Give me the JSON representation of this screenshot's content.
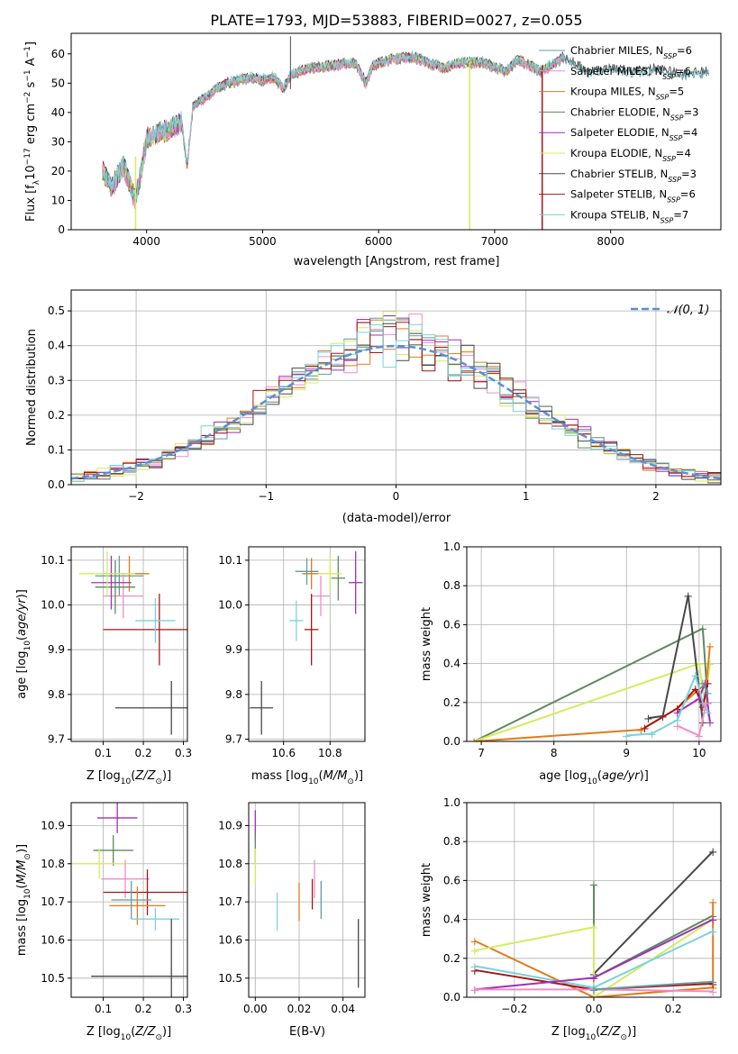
{
  "figure_title": "PLATE=1793, MJD=53883, FIBERID=0027, z=0.055",
  "models": [
    {
      "name": "Chabrier MILES",
      "nssp": "6",
      "color": "#5f9ea0"
    },
    {
      "name": "Salpeter MILES",
      "nssp": "6",
      "color": "#f08cc8"
    },
    {
      "name": "Kroupa MILES",
      "nssp": "5",
      "color": "#e07b1a"
    },
    {
      "name": "Chabrier ELODIE",
      "nssp": "3",
      "color": "#5e8a5e"
    },
    {
      "name": "Salpeter ELODIE",
      "nssp": "4",
      "color": "#a030b8"
    },
    {
      "name": "Kroupa ELODIE",
      "nssp": "4",
      "color": "#d4ec5c"
    },
    {
      "name": "Chabrier STELIB",
      "nssp": "3",
      "color": "#484848"
    },
    {
      "name": "Salpeter STELIB",
      "nssp": "6",
      "color": "#a81414"
    },
    {
      "name": "Kroupa STELIB",
      "nssp": "7",
      "color": "#78d2e0"
    }
  ],
  "chart_data": [
    {
      "type": "line",
      "xlabel": "wavelength [Angstrom, rest frame]",
      "ylabel": "Flux [f_λ 10^-17 erg cm^-2 s^-1 A^-1]",
      "xlim": [
        3350,
        8950
      ],
      "ylim": [
        0,
        67
      ],
      "xticks": [
        4000,
        5000,
        6000,
        7000,
        8000
      ],
      "yticks": [
        0,
        10,
        20,
        30,
        40,
        50,
        60
      ],
      "spectrum_anchors": [
        [
          3620,
          20
        ],
        [
          3700,
          14
        ],
        [
          3800,
          22
        ],
        [
          3850,
          16
        ],
        [
          3900,
          10
        ],
        [
          3950,
          19
        ],
        [
          4000,
          31
        ],
        [
          4100,
          33
        ],
        [
          4200,
          34
        ],
        [
          4300,
          37
        ],
        [
          4350,
          22
        ],
        [
          4400,
          42
        ],
        [
          4500,
          45
        ],
        [
          4600,
          48
        ],
        [
          4700,
          50
        ],
        [
          4800,
          51
        ],
        [
          4900,
          52
        ],
        [
          5000,
          51
        ],
        [
          5100,
          52
        ],
        [
          5175,
          48
        ],
        [
          5250,
          53
        ],
        [
          5400,
          55
        ],
        [
          5600,
          56
        ],
        [
          5800,
          57
        ],
        [
          5890,
          50
        ],
        [
          5950,
          56
        ],
        [
          6100,
          58
        ],
        [
          6300,
          59
        ],
        [
          6563,
          55
        ],
        [
          6700,
          57
        ],
        [
          6900,
          57
        ],
        [
          7100,
          54
        ],
        [
          7200,
          58
        ],
        [
          7400,
          54
        ],
        [
          7600,
          59
        ],
        [
          7800,
          54
        ],
        [
          8000,
          55
        ],
        [
          8200,
          54
        ],
        [
          8400,
          55
        ],
        [
          8600,
          53
        ],
        [
          8850,
          54
        ]
      ],
      "legend_position": "upper right",
      "grid": false
    },
    {
      "type": "bar",
      "subtype": "step-histogram",
      "xlabel": "(data-model)/error",
      "ylabel": "Normed distribution",
      "xlim": [
        -2.5,
        2.5
      ],
      "ylim": [
        0,
        0.56
      ],
      "xticks": [
        -2,
        -1,
        0,
        1,
        2
      ],
      "yticks": [
        0.0,
        0.1,
        0.2,
        0.3,
        0.4,
        0.5
      ],
      "bin_width": 0.1,
      "reference_curve": {
        "label": "N(0,1)",
        "mean": 0,
        "sigma": 1,
        "color": "#5b8fd4"
      },
      "grid": true,
      "legend_position": "upper right"
    },
    {
      "type": "scatter",
      "xlabel": "Z [log10(Z/Z⊙)]",
      "ylabel": "age [log10(age/yr)]",
      "xlim": [
        0.02,
        0.31
      ],
      "ylim": [
        9.695,
        10.13
      ],
      "xticks": [
        0.1,
        0.2,
        0.3
      ],
      "yticks": [
        9.7,
        9.8,
        9.9,
        10.0,
        10.1
      ],
      "grid": true,
      "points": [
        {
          "x": 0.14,
          "y": 10.065,
          "xerr": 0.06,
          "yerr": 0.045,
          "color": "#5f9ea0"
        },
        {
          "x": 0.15,
          "y": 10.02,
          "xerr": 0.05,
          "yerr": 0.05,
          "color": "#f08cc8"
        },
        {
          "x": 0.165,
          "y": 10.07,
          "xerr": 0.05,
          "yerr": 0.04,
          "color": "#e07b1a"
        },
        {
          "x": 0.13,
          "y": 10.04,
          "xerr": 0.05,
          "yerr": 0.06,
          "color": "#5e8a5e"
        },
        {
          "x": 0.12,
          "y": 10.05,
          "xerr": 0.05,
          "yerr": 0.06,
          "color": "#a030b8"
        },
        {
          "x": 0.11,
          "y": 10.07,
          "xerr": 0.07,
          "yerr": 0.05,
          "color": "#d4ec5c"
        },
        {
          "x": 0.27,
          "y": 9.77,
          "xerr": 0.14,
          "yerr": 0.06,
          "color": "#484848"
        },
        {
          "x": 0.24,
          "y": 9.945,
          "xerr": 0.14,
          "yerr": 0.08,
          "color": "#a81414"
        },
        {
          "x": 0.23,
          "y": 9.965,
          "xerr": 0.05,
          "yerr": 0.05,
          "color": "#78d2e0"
        }
      ]
    },
    {
      "type": "scatter",
      "xlabel": "mass [log10(M/M⊙)]",
      "ylabel": "",
      "xlim": [
        10.45,
        10.95
      ],
      "ylim": [
        9.695,
        10.13
      ],
      "xticks": [
        10.6,
        10.8
      ],
      "yticks": [
        9.7,
        9.8,
        9.9,
        10.0,
        10.1
      ],
      "grid": true,
      "points": [
        {
          "x": 10.655,
          "y": 9.965,
          "xerr": 0.03,
          "yerr": 0.045,
          "color": "#78d2e0"
        },
        {
          "x": 10.76,
          "y": 10.02,
          "xerr": 0.04,
          "yerr": 0.045,
          "color": "#f08cc8"
        },
        {
          "x": 10.72,
          "y": 10.07,
          "xerr": 0.04,
          "yerr": 0.035,
          "color": "#e07b1a"
        },
        {
          "x": 10.835,
          "y": 10.06,
          "xerr": 0.03,
          "yerr": 0.05,
          "color": "#5e8a5e"
        },
        {
          "x": 10.91,
          "y": 10.05,
          "xerr": 0.03,
          "yerr": 0.07,
          "color": "#a030b8"
        },
        {
          "x": 10.8,
          "y": 10.07,
          "xerr": 0.05,
          "yerr": 0.04,
          "color": "#d4ec5c"
        },
        {
          "x": 10.505,
          "y": 9.77,
          "xerr": 0.05,
          "yerr": 0.06,
          "color": "#484848"
        },
        {
          "x": 10.72,
          "y": 9.945,
          "xerr": 0.03,
          "yerr": 0.08,
          "color": "#a81414"
        },
        {
          "x": 10.7,
          "y": 10.075,
          "xerr": 0.05,
          "yerr": 0.03,
          "color": "#5f9ea0"
        }
      ]
    },
    {
      "type": "line",
      "xlabel": "age [log10(age/yr)]",
      "ylabel": "mass weight",
      "xlim": [
        6.8,
        10.3
      ],
      "ylim": [
        0,
        1.0
      ],
      "xticks": [
        7,
        8,
        9,
        10
      ],
      "yticks": [
        0.0,
        0.2,
        0.4,
        0.6,
        0.8,
        1.0
      ],
      "grid": true,
      "series": [
        {
          "color": "#5e8a5e",
          "points": [
            [
              6.9,
              0.0
            ],
            [
              10.05,
              0.58
            ],
            [
              10.12,
              0.2
            ]
          ]
        },
        {
          "color": "#d4ec5c",
          "points": [
            [
              6.9,
              0.0
            ],
            [
              10.0,
              0.4
            ],
            [
              10.08,
              0.2
            ],
            [
              10.15,
              0.4
            ]
          ]
        },
        {
          "color": "#484848",
          "points": [
            [
              9.3,
              0.12
            ],
            [
              9.5,
              0.13
            ],
            [
              9.85,
              0.75
            ],
            [
              10.05,
              0.1
            ]
          ]
        },
        {
          "color": "#e07b1a",
          "points": [
            [
              6.9,
              0.0
            ],
            [
              9.2,
              0.06
            ],
            [
              9.7,
              0.17
            ],
            [
              10.1,
              0.3
            ],
            [
              10.15,
              0.49
            ]
          ]
        },
        {
          "color": "#a81414",
          "points": [
            [
              9.25,
              0.07
            ],
            [
              9.7,
              0.17
            ],
            [
              9.95,
              0.27
            ],
            [
              10.05,
              0.18
            ],
            [
              10.12,
              0.3
            ]
          ]
        },
        {
          "color": "#a030b8",
          "points": [
            [
              9.7,
              0.15
            ],
            [
              10.0,
              0.22
            ],
            [
              10.08,
              0.3
            ],
            [
              10.15,
              0.1
            ]
          ]
        },
        {
          "color": "#78d2e0",
          "points": [
            [
              9.0,
              0.03
            ],
            [
              9.35,
              0.04
            ],
            [
              9.7,
              0.11
            ],
            [
              9.95,
              0.34
            ],
            [
              10.05,
              0.2
            ],
            [
              10.12,
              0.15
            ]
          ]
        },
        {
          "color": "#f08cc8",
          "points": [
            [
              9.7,
              0.08
            ],
            [
              10.0,
              0.03
            ],
            [
              10.1,
              0.2
            ]
          ]
        },
        {
          "color": "#5f9ea0",
          "points": [
            [
              10.05,
              0.3
            ],
            [
              10.12,
              0.25
            ]
          ]
        }
      ]
    },
    {
      "type": "scatter",
      "xlabel": "Z [log10(Z/Z⊙)]",
      "ylabel": "mass [log10(M/M⊙)]",
      "xlim": [
        0.02,
        0.31
      ],
      "ylim": [
        10.45,
        10.96
      ],
      "xticks": [
        0.1,
        0.2,
        0.3
      ],
      "yticks": [
        10.5,
        10.6,
        10.7,
        10.8,
        10.9
      ],
      "grid": true,
      "points": [
        {
          "x": 0.135,
          "y": 10.92,
          "xerr": 0.05,
          "yerr": 0.04,
          "color": "#a030b8"
        },
        {
          "x": 0.125,
          "y": 10.835,
          "xerr": 0.05,
          "yerr": 0.04,
          "color": "#5e8a5e"
        },
        {
          "x": 0.09,
          "y": 10.8,
          "xerr": 0.07,
          "yerr": 0.04,
          "color": "#d4ec5c"
        },
        {
          "x": 0.155,
          "y": 10.76,
          "xerr": 0.06,
          "yerr": 0.05,
          "color": "#f08cc8"
        },
        {
          "x": 0.21,
          "y": 10.725,
          "xerr": 0.11,
          "yerr": 0.06,
          "color": "#a81414"
        },
        {
          "x": 0.17,
          "y": 10.705,
          "xerr": 0.05,
          "yerr": 0.05,
          "color": "#5f9ea0"
        },
        {
          "x": 0.185,
          "y": 10.69,
          "xerr": 0.07,
          "yerr": 0.05,
          "color": "#e07b1a"
        },
        {
          "x": 0.23,
          "y": 10.655,
          "xerr": 0.06,
          "yerr": 0.03,
          "color": "#78d2e0"
        },
        {
          "x": 0.27,
          "y": 10.505,
          "xerr": 0.2,
          "yerr": 0.15,
          "color": "#484848"
        }
      ]
    },
    {
      "type": "scatter",
      "xlabel": "E(B-V)",
      "ylabel": "",
      "xlim": [
        -0.003,
        0.05
      ],
      "ylim": [
        10.45,
        10.96
      ],
      "xticks": [
        0.0,
        0.02,
        0.04
      ],
      "yticks": [
        10.5,
        10.6,
        10.7,
        10.8,
        10.9
      ],
      "grid": true,
      "points": [
        {
          "x": 0.0,
          "y": 10.9,
          "yerr": 0.04,
          "color": "#a030b8"
        },
        {
          "x": 0.0,
          "y": 10.84,
          "yerr": 0.04,
          "color": "#5e8a5e"
        },
        {
          "x": 0.0,
          "y": 10.79,
          "yerr": 0.05,
          "color": "#d4ec5c"
        },
        {
          "x": 0.027,
          "y": 10.76,
          "yerr": 0.05,
          "color": "#f08cc8"
        },
        {
          "x": 0.026,
          "y": 10.72,
          "yerr": 0.04,
          "color": "#a81414"
        },
        {
          "x": 0.03,
          "y": 10.705,
          "yerr": 0.05,
          "color": "#5f9ea0"
        },
        {
          "x": 0.02,
          "y": 10.7,
          "yerr": 0.05,
          "color": "#e07b1a"
        },
        {
          "x": 0.01,
          "y": 10.675,
          "yerr": 0.05,
          "color": "#78d2e0"
        },
        {
          "x": 0.047,
          "y": 10.565,
          "yerr": 0.09,
          "color": "#484848"
        }
      ]
    },
    {
      "type": "line",
      "xlabel": "Z [log10(Z/Z⊙)]",
      "ylabel": "mass weight",
      "xlim": [
        -0.32,
        0.32
      ],
      "ylim": [
        0,
        1.0
      ],
      "xticks": [
        -0.2,
        0.0,
        0.2
      ],
      "yticks": [
        0.0,
        0.2,
        0.4,
        0.6,
        0.8,
        1.0
      ],
      "grid": true,
      "series": [
        {
          "color": "#484848",
          "points": [
            [
              0.0,
              0.12
            ],
            [
              0.3,
              0.75
            ]
          ]
        },
        {
          "color": "#5e8a5e",
          "points": [
            [
              0.0,
              0.58
            ],
            [
              0.0,
              0.1
            ],
            [
              0.3,
              0.42
            ]
          ]
        },
        {
          "color": "#e07b1a",
          "points": [
            [
              -0.3,
              0.29
            ],
            [
              0.0,
              0.0
            ],
            [
              0.3,
              0.05
            ],
            [
              0.3,
              0.49
            ]
          ]
        },
        {
          "color": "#d4ec5c",
          "points": [
            [
              -0.3,
              0.24
            ],
            [
              0.0,
              0.36
            ],
            [
              0.0,
              0.0
            ],
            [
              0.3,
              0.4
            ]
          ]
        },
        {
          "color": "#a81414",
          "points": [
            [
              -0.3,
              0.14
            ],
            [
              0.0,
              0.04
            ],
            [
              0.3,
              0.07
            ]
          ]
        },
        {
          "color": "#78d2e0",
          "points": [
            [
              -0.3,
              0.16
            ],
            [
              0.0,
              0.05
            ],
            [
              0.3,
              0.34
            ]
          ]
        },
        {
          "color": "#a030b8",
          "points": [
            [
              -0.3,
              0.04
            ],
            [
              0.0,
              0.1
            ],
            [
              0.3,
              0.4
            ]
          ]
        },
        {
          "color": "#f08cc8",
          "points": [
            [
              -0.3,
              0.04
            ],
            [
              0.0,
              0.04
            ],
            [
              0.3,
              0.03
            ]
          ]
        },
        {
          "color": "#5f9ea0",
          "points": [
            [
              0.0,
              0.04
            ],
            [
              0.3,
              0.08
            ]
          ]
        }
      ]
    }
  ]
}
